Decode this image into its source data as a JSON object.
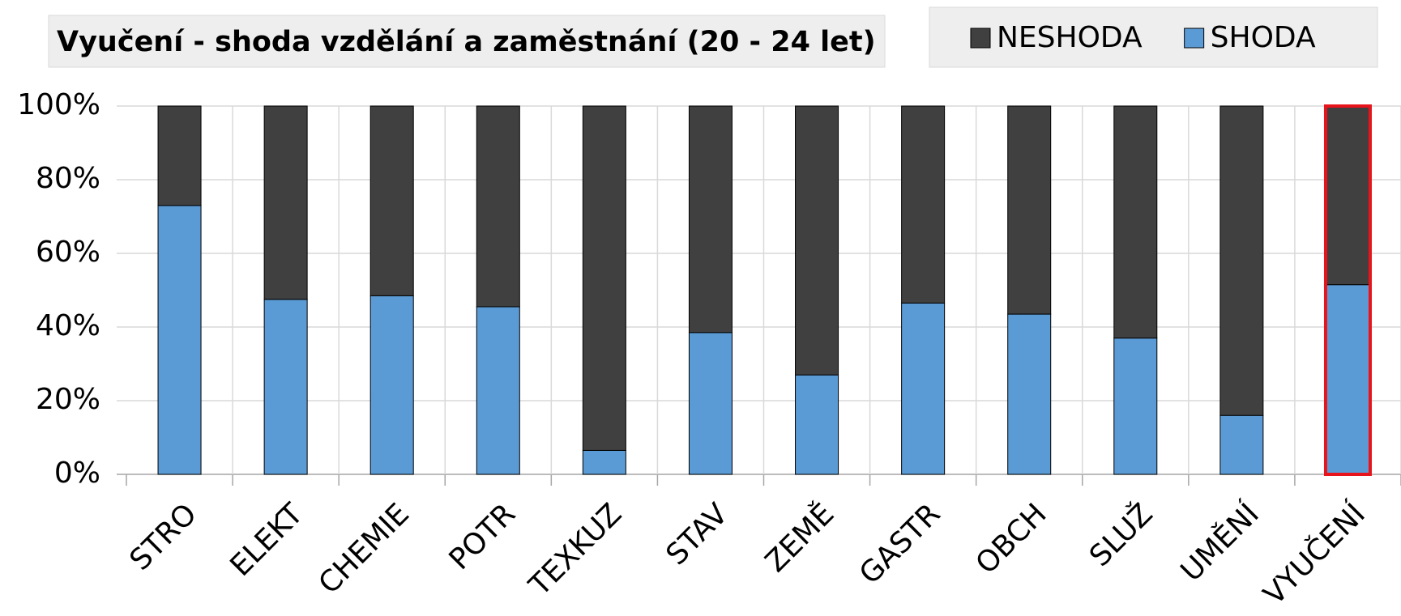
{
  "chart_data": {
    "type": "stacked_bar",
    "title": "Vyučení - shoda vzdělání a zaměstnání (20 - 24 let)",
    "categories": [
      "STRO",
      "ELEKT",
      "CHEMIE",
      "POTR",
      "TEXKUZ",
      "STAV",
      "ZEMĚ",
      "GASTR",
      "OBCH",
      "SLUŽ",
      "UMĚNÍ",
      "VYUČENÍ"
    ],
    "series": [
      {
        "name": "SHODA",
        "color": "#5b9bd5",
        "values": [
          73,
          47.5,
          48.5,
          45.5,
          6.5,
          38.5,
          27,
          46.5,
          43.5,
          37,
          16,
          51.5
        ]
      },
      {
        "name": "NESHODA",
        "color": "#404040",
        "values": [
          27,
          52.5,
          51.5,
          54.5,
          93.5,
          61.5,
          73,
          53.5,
          56.5,
          63,
          84,
          48.5
        ]
      }
    ],
    "legend_order": [
      1,
      0
    ],
    "ylim": [
      0,
      100
    ],
    "yticks": [
      {
        "value": 0,
        "label": "0%"
      },
      {
        "value": 20,
        "label": "20%"
      },
      {
        "value": 40,
        "label": "40%"
      },
      {
        "value": 60,
        "label": "60%"
      },
      {
        "value": 80,
        "label": "80%"
      },
      {
        "value": 100,
        "label": "100%"
      }
    ],
    "grid": true,
    "highlight": {
      "category": "VYUČENÍ",
      "color": "#e8141c"
    }
  }
}
